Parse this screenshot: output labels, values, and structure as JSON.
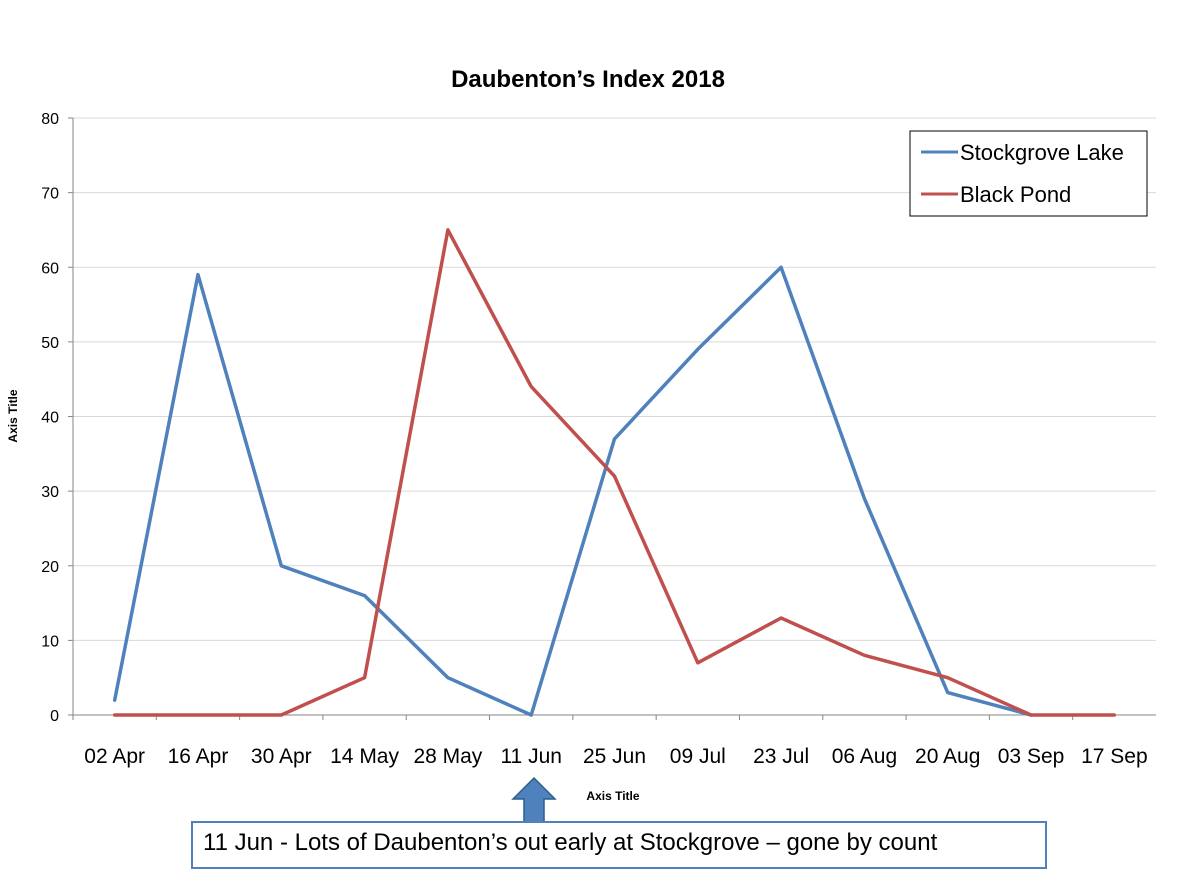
{
  "chart_data": {
    "type": "line",
    "title": "Daubenton’s Index 2018",
    "xlabel": "Axis Title",
    "ylabel": "Axis Title",
    "ylim": [
      0,
      80
    ],
    "yticks": [
      0,
      10,
      20,
      30,
      40,
      50,
      60,
      70,
      80
    ],
    "grid": true,
    "legend_position": "top-right",
    "categories": [
      "02 Apr",
      "16 Apr",
      "30 Apr",
      "14 May",
      "28 May",
      "11 Jun",
      "25 Jun",
      "09 Jul",
      "23 Jul",
      "06 Aug",
      "20 Aug",
      "03 Sep",
      "17 Sep"
    ],
    "series": [
      {
        "name": "Stockgrove Lake",
        "color": "#4f81bd",
        "values": [
          2,
          59,
          20,
          16,
          5,
          0,
          37,
          49,
          60,
          29,
          3,
          0,
          null
        ]
      },
      {
        "name": "Black Pond",
        "color": "#c0504d",
        "values": [
          0,
          0,
          0,
          5,
          65,
          44,
          32,
          7,
          13,
          8,
          5,
          0,
          0
        ]
      }
    ]
  },
  "annotation": {
    "text": "11 Jun - Lots of Daubenton’s out early at Stockgrove – gone by count",
    "arrow_color": "#4f81bd"
  }
}
